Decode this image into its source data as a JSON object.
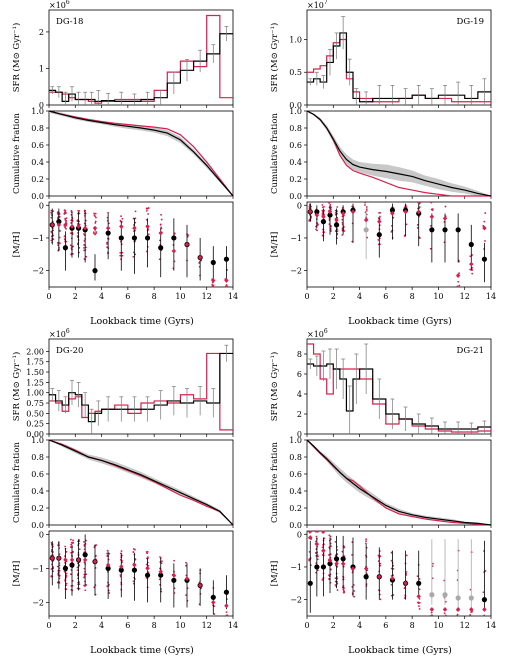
{
  "figure": {
    "xlabel": "Lookback time (Gyrs)"
  },
  "colors": {
    "model": "#d6204e",
    "obs": "#000000",
    "band": "#c8c8c8",
    "errbar": "#777777",
    "faded": "#aaaaaa"
  },
  "chart_data": [
    {
      "type": "line",
      "name": "DG-18",
      "sfr": {
        "ylabel": "SFR (M⊙ Gyr⁻¹)",
        "multiplier": "×10",
        "exponent": "6",
        "ylim": [
          0,
          2.6
        ],
        "yticks": [
          0,
          1,
          2
        ],
        "bins": [
          0,
          0.5,
          1,
          1.5,
          2,
          2.5,
          3,
          3.5,
          4,
          5,
          6,
          7,
          8,
          9,
          10,
          11,
          12,
          13,
          14
        ],
        "observed": [
          0.4,
          0.35,
          0.1,
          0.3,
          0.15,
          0.15,
          0.15,
          0.1,
          0.12,
          0.1,
          0.1,
          0.15,
          0.2,
          0.6,
          0.95,
          1.2,
          1.4,
          1.95
        ],
        "observed_err": [
          0.1,
          0.15,
          0.25,
          0.2,
          0.2,
          0.2,
          0.2,
          0.3,
          0.2,
          0.25,
          0.2,
          0.2,
          0.2,
          0.3,
          0.3,
          0.3,
          0.25,
          0.2
        ],
        "model": [
          0.35,
          0.35,
          0.3,
          0.2,
          0.15,
          0.15,
          0.1,
          0.05,
          0.1,
          0.15,
          0.15,
          0.1,
          0.4,
          0.9,
          1.2,
          1.05,
          2.45,
          0.2
        ]
      },
      "cumulative": {
        "ylabel": "Cumulative fration",
        "ylim": [
          0,
          1
        ],
        "yticks": [
          0.0,
          0.2,
          0.4,
          0.6,
          0.8,
          1.0
        ],
        "x": [
          0,
          1,
          2,
          3,
          4,
          5,
          6,
          7,
          8,
          9,
          10,
          11,
          12,
          13,
          14
        ],
        "observed": [
          1.0,
          0.96,
          0.92,
          0.89,
          0.865,
          0.84,
          0.82,
          0.8,
          0.775,
          0.74,
          0.66,
          0.52,
          0.36,
          0.18,
          0.0
        ],
        "band": [
          0.02,
          0.02,
          0.02,
          0.02,
          0.02,
          0.025,
          0.03,
          0.03,
          0.03,
          0.035,
          0.035,
          0.03,
          0.03,
          0.02,
          0.0
        ],
        "model": [
          1.0,
          0.96,
          0.93,
          0.9,
          0.875,
          0.855,
          0.84,
          0.825,
          0.81,
          0.79,
          0.72,
          0.58,
          0.4,
          0.2,
          0.0
        ]
      },
      "metallicity": {
        "ylabel": "[M/H]",
        "ylim": [
          -2.5,
          0.1
        ],
        "yticks": [
          -2,
          -1,
          0
        ],
        "x": [
          0.25,
          0.75,
          1.25,
          1.75,
          2.25,
          2.75,
          3.5,
          4.5,
          5.5,
          6.5,
          7.5,
          8.5,
          9.5,
          10.5,
          11.5,
          12.5,
          13.5
        ],
        "observed": [
          -0.6,
          -0.5,
          -1.3,
          -0.7,
          -0.7,
          -0.75,
          -2.0,
          -0.85,
          -1.0,
          -1.0,
          -1.0,
          -1.3,
          -1.0,
          -1.2,
          -1.6,
          -1.75,
          -1.65
        ],
        "err_low": [
          0.6,
          0.9,
          0.7,
          0.9,
          0.9,
          1.0,
          0.3,
          0.8,
          1.0,
          1.1,
          0.9,
          0.9,
          1.0,
          1.0,
          0.7,
          0.6,
          0.7
        ],
        "err_high": [
          0.5,
          0.4,
          0.5,
          0.5,
          0.5,
          0.6,
          0.5,
          0.6,
          0.5,
          0.6,
          0.6,
          0.6,
          0.6,
          0.6,
          0.6,
          0.5,
          0.4
        ],
        "model": [
          -0.6,
          -0.6,
          -0.6,
          -0.65,
          -0.65,
          -0.7,
          -0.7,
          -0.7,
          -0.65,
          -0.7,
          -0.65,
          -0.85,
          -1.4,
          -1.2,
          -1.6,
          -2.3,
          -2.3
        ],
        "faded": []
      }
    },
    {
      "type": "line",
      "name": "DG-19",
      "sfr": {
        "ylabel": "SFR (M⊙ Gyr⁻¹)",
        "multiplier": "×10",
        "exponent": "7",
        "ylim": [
          0,
          1.45
        ],
        "yticks": [
          0.0,
          0.5,
          1.0
        ],
        "bins": [
          0,
          0.5,
          1,
          1.5,
          2,
          2.5,
          3,
          3.5,
          4,
          5,
          6,
          7,
          8,
          9,
          10,
          11,
          12,
          13,
          14
        ],
        "observed": [
          0.35,
          0.4,
          0.35,
          0.65,
          0.9,
          1.1,
          0.5,
          0.1,
          0.05,
          0.1,
          0.1,
          0.1,
          0.15,
          0.1,
          0.15,
          0.15,
          0.1,
          0.2
        ],
        "observed_err": [
          0.05,
          0.1,
          0.1,
          0.2,
          0.2,
          0.25,
          0.2,
          0.15,
          0.15,
          0.2,
          0.2,
          0.15,
          0.15,
          0.15,
          0.15,
          0.2,
          0.2,
          0.2
        ],
        "model": [
          0.5,
          0.55,
          0.6,
          0.75,
          0.95,
          1.0,
          0.4,
          0.2,
          0.1,
          0.05,
          0.05,
          0.1,
          0.15,
          0.1,
          0.1,
          0.05,
          0.05,
          0.05
        ]
      },
      "cumulative": {
        "ylabel": "Cumulative fration",
        "ylim": [
          0,
          1
        ],
        "yticks": [
          0.0,
          0.2,
          0.4,
          0.6,
          0.8,
          1.0
        ],
        "x": [
          0,
          0.5,
          1,
          1.5,
          2,
          2.5,
          3,
          3.5,
          4,
          5,
          6,
          7,
          8,
          9,
          10,
          11,
          12,
          13,
          14
        ],
        "observed": [
          1.0,
          0.96,
          0.9,
          0.8,
          0.67,
          0.53,
          0.43,
          0.37,
          0.34,
          0.31,
          0.29,
          0.26,
          0.23,
          0.18,
          0.14,
          0.1,
          0.07,
          0.03,
          0.0
        ],
        "band": [
          0.0,
          0.01,
          0.02,
          0.03,
          0.04,
          0.05,
          0.06,
          0.06,
          0.06,
          0.07,
          0.08,
          0.08,
          0.07,
          0.06,
          0.06,
          0.05,
          0.04,
          0.03,
          0.0
        ],
        "model": [
          1.0,
          0.96,
          0.9,
          0.8,
          0.66,
          0.48,
          0.36,
          0.3,
          0.27,
          0.22,
          0.16,
          0.1,
          0.07,
          0.04,
          0.02,
          0.0,
          0.0,
          0.0,
          0.0
        ]
      },
      "metallicity": {
        "ylabel": "[M/H]",
        "ylim": [
          -2.5,
          0.1
        ],
        "yticks": [
          -2,
          -1,
          0
        ],
        "x": [
          0.25,
          0.75,
          1.25,
          1.75,
          2.25,
          2.75,
          3.5,
          4.5,
          5.5,
          6.5,
          7.5,
          8.5,
          9.5,
          10.5,
          11.5,
          12.5,
          13.5
        ],
        "observed": [
          -0.2,
          -0.2,
          -0.5,
          -0.3,
          -0.6,
          -0.2,
          -0.15,
          -0.75,
          -0.9,
          -0.15,
          -0.15,
          -0.25,
          -0.75,
          -0.75,
          -0.75,
          -1.2,
          -1.65
        ],
        "err_low": [
          0.3,
          0.5,
          0.6,
          0.6,
          0.6,
          0.7,
          1.0,
          0.9,
          0.7,
          0.9,
          0.8,
          1.0,
          1.0,
          1.0,
          1.0,
          0.8,
          0.7
        ],
        "err_high": [
          0.25,
          0.2,
          0.4,
          0.3,
          0.5,
          0.2,
          0.2,
          0.6,
          0.5,
          0.2,
          0.2,
          0.3,
          0.5,
          0.5,
          0.5,
          0.6,
          0.5
        ],
        "model": [
          -0.2,
          -0.3,
          -0.35,
          -0.2,
          -0.45,
          -0.25,
          -0.2,
          -0.45,
          -0.5,
          -0.25,
          -0.2,
          -0.2,
          -0.35,
          -0.4,
          -2.15,
          -1.8,
          -0.7
        ],
        "faded": [
          4.5
        ]
      }
    },
    {
      "type": "line",
      "name": "DG-20",
      "sfr": {
        "ylabel": "SFR (M⊙ Gyr⁻¹)",
        "multiplier": "×10",
        "exponent": "6",
        "ylim": [
          0,
          2.3
        ],
        "yticks": [
          0.0,
          0.25,
          0.5,
          0.75,
          1.0,
          1.25,
          1.5,
          1.75,
          2.0
        ],
        "bins": [
          0,
          0.5,
          1,
          1.5,
          2,
          2.5,
          3,
          3.5,
          4,
          5,
          6,
          7,
          8,
          9,
          10,
          11,
          12,
          13,
          14
        ],
        "observed": [
          0.95,
          0.8,
          0.7,
          1.0,
          0.95,
          0.7,
          0.3,
          0.5,
          0.6,
          0.6,
          0.6,
          0.6,
          0.7,
          0.8,
          0.75,
          0.8,
          0.75,
          1.95
        ],
        "observed_err": [
          0.15,
          0.25,
          0.2,
          0.3,
          0.3,
          0.3,
          0.3,
          0.3,
          0.3,
          0.3,
          0.3,
          0.3,
          0.35,
          0.35,
          0.35,
          0.35,
          0.35,
          0.2
        ],
        "model": [
          0.8,
          0.75,
          0.55,
          0.85,
          0.9,
          0.4,
          0.5,
          0.55,
          0.6,
          0.7,
          0.5,
          0.75,
          0.8,
          0.75,
          0.95,
          0.85,
          1.95,
          0.1
        ]
      },
      "cumulative": {
        "ylabel": "Cumulative fration",
        "ylim": [
          0,
          1
        ],
        "yticks": [
          0.0,
          0.2,
          0.4,
          0.6,
          0.8,
          1.0
        ],
        "x": [
          0,
          1,
          2,
          3,
          4,
          5,
          6,
          7,
          8,
          9,
          10,
          11,
          12,
          13,
          14
        ],
        "observed": [
          1.0,
          0.94,
          0.87,
          0.8,
          0.76,
          0.71,
          0.65,
          0.59,
          0.52,
          0.45,
          0.38,
          0.31,
          0.24,
          0.16,
          0.0
        ],
        "band": [
          0.0,
          0.02,
          0.025,
          0.03,
          0.035,
          0.035,
          0.035,
          0.035,
          0.03,
          0.03,
          0.03,
          0.025,
          0.02,
          0.02,
          0.0
        ],
        "model": [
          1.0,
          0.95,
          0.88,
          0.8,
          0.76,
          0.7,
          0.64,
          0.58,
          0.51,
          0.43,
          0.35,
          0.29,
          0.22,
          0.16,
          0.0
        ]
      },
      "metallicity": {
        "ylabel": "[M/H]",
        "ylim": [
          -2.4,
          0.1
        ],
        "yticks": [
          -2,
          -1,
          0
        ],
        "x": [
          0.25,
          0.75,
          1.25,
          1.75,
          2.25,
          2.75,
          3.5,
          4.5,
          5.5,
          6.5,
          7.5,
          8.5,
          9.5,
          10.5,
          11.5,
          12.5,
          13.5
        ],
        "observed": [
          -0.7,
          -0.7,
          -1.0,
          -0.9,
          -0.75,
          -0.6,
          -0.8,
          -1.0,
          -1.05,
          -1.05,
          -1.2,
          -1.2,
          -1.35,
          -1.35,
          -1.5,
          -1.85,
          -1.7
        ],
        "err_low": [
          0.8,
          0.9,
          0.9,
          0.9,
          0.9,
          0.9,
          1.0,
          0.9,
          0.8,
          0.9,
          0.8,
          0.8,
          0.8,
          0.8,
          0.6,
          0.5,
          0.5
        ],
        "err_high": [
          0.5,
          0.5,
          0.6,
          0.6,
          0.6,
          0.6,
          0.5,
          0.5,
          0.5,
          0.5,
          0.5,
          0.5,
          0.5,
          0.5,
          0.5,
          0.5,
          0.5
        ],
        "model": [
          -0.7,
          -0.7,
          -0.75,
          -0.75,
          -0.75,
          -0.75,
          -0.8,
          -0.9,
          -0.95,
          -0.9,
          -1.0,
          -1.1,
          -1.2,
          -1.3,
          -1.5,
          -2.0,
          -2.1
        ],
        "faded": []
      }
    },
    {
      "type": "line",
      "name": "DG-21",
      "sfr": {
        "ylabel": "SFR (M⊙ Gyr⁻¹)",
        "multiplier": "×10",
        "exponent": "6",
        "ylim": [
          0,
          9.5
        ],
        "yticks": [
          0,
          2,
          4,
          6,
          8
        ],
        "bins": [
          0,
          0.5,
          1,
          1.5,
          2,
          2.5,
          3,
          3.5,
          4,
          5,
          6,
          7,
          8,
          9,
          10,
          11,
          12,
          13,
          14
        ],
        "observed": [
          7.0,
          6.8,
          6.8,
          7.0,
          6.5,
          5.5,
          2.3,
          5.5,
          6.5,
          3.5,
          2.0,
          1.5,
          1.0,
          0.8,
          0.5,
          0.5,
          0.5,
          0.7
        ],
        "observed_err": [
          0.5,
          1.0,
          1.5,
          1.5,
          2.0,
          2.0,
          2.5,
          2.5,
          2.5,
          2.0,
          1.5,
          1.2,
          1.0,
          0.8,
          0.7,
          0.7,
          0.6,
          0.6
        ],
        "model": [
          9.0,
          8.0,
          5.5,
          4.0,
          6.5,
          6.5,
          6.5,
          6.5,
          5.5,
          3.0,
          1.0,
          1.5,
          0.8,
          0.5,
          0.3,
          0.2,
          0.2,
          0.3
        ]
      },
      "cumulative": {
        "ylabel": "Cumulative fration",
        "ylim": [
          0,
          1
        ],
        "yticks": [
          0.0,
          0.2,
          0.4,
          0.6,
          0.8,
          1.0
        ],
        "x": [
          0,
          0.5,
          1,
          1.5,
          2,
          2.5,
          3,
          3.5,
          4,
          5,
          6,
          7,
          8,
          9,
          10,
          11,
          12,
          13,
          14
        ],
        "observed": [
          1.0,
          0.93,
          0.85,
          0.78,
          0.7,
          0.62,
          0.55,
          0.49,
          0.43,
          0.33,
          0.23,
          0.16,
          0.12,
          0.09,
          0.07,
          0.05,
          0.03,
          0.02,
          0.0
        ],
        "band": [
          0.0,
          0.01,
          0.02,
          0.03,
          0.04,
          0.05,
          0.05,
          0.05,
          0.05,
          0.04,
          0.03,
          0.03,
          0.02,
          0.02,
          0.02,
          0.02,
          0.01,
          0.01,
          0.0
        ],
        "model": [
          1.0,
          0.92,
          0.84,
          0.77,
          0.69,
          0.62,
          0.55,
          0.52,
          0.46,
          0.32,
          0.2,
          0.13,
          0.1,
          0.07,
          0.05,
          0.03,
          0.02,
          0.01,
          0.0
        ]
      },
      "metallicity": {
        "ylabel": "[M/H]",
        "ylim": [
          -2.5,
          0.1
        ],
        "yticks": [
          -2,
          -1,
          0
        ],
        "x": [
          0.25,
          0.75,
          1.25,
          1.75,
          2.25,
          2.75,
          3.5,
          4.5,
          5.5,
          6.5,
          7.5,
          8.5,
          9.5,
          10.5,
          11.5,
          12.5,
          13.5
        ],
        "observed": [
          -1.5,
          -1.0,
          -1.0,
          -0.9,
          -0.75,
          -0.75,
          -1.0,
          -1.3,
          -1.3,
          -1.4,
          -1.5,
          -1.5,
          -1.85,
          -1.85,
          -1.95,
          -1.95,
          -2.0
        ],
        "err_low": [
          0.9,
          0.9,
          0.9,
          0.9,
          0.9,
          0.9,
          0.9,
          0.7,
          0.7,
          0.6,
          0.5,
          0.4,
          0.3,
          0.3,
          0.3,
          0.3,
          0.3
        ],
        "err_high": [
          1.3,
          0.9,
          0.9,
          0.8,
          0.7,
          0.7,
          0.9,
          1.0,
          0.9,
          0.9,
          1.0,
          1.0,
          1.7,
          1.7,
          1.8,
          1.8,
          1.8
        ],
        "model": [
          -0.1,
          -0.3,
          -0.5,
          -0.8,
          -0.9,
          -0.9,
          -1.05,
          -1.05,
          -1.3,
          -1.35,
          -1.5,
          -1.9,
          -2.3,
          -2.3,
          -2.3,
          -2.3,
          -2.3
        ],
        "faded": [
          9.5,
          10.5,
          11.5,
          12.5
        ]
      }
    }
  ]
}
